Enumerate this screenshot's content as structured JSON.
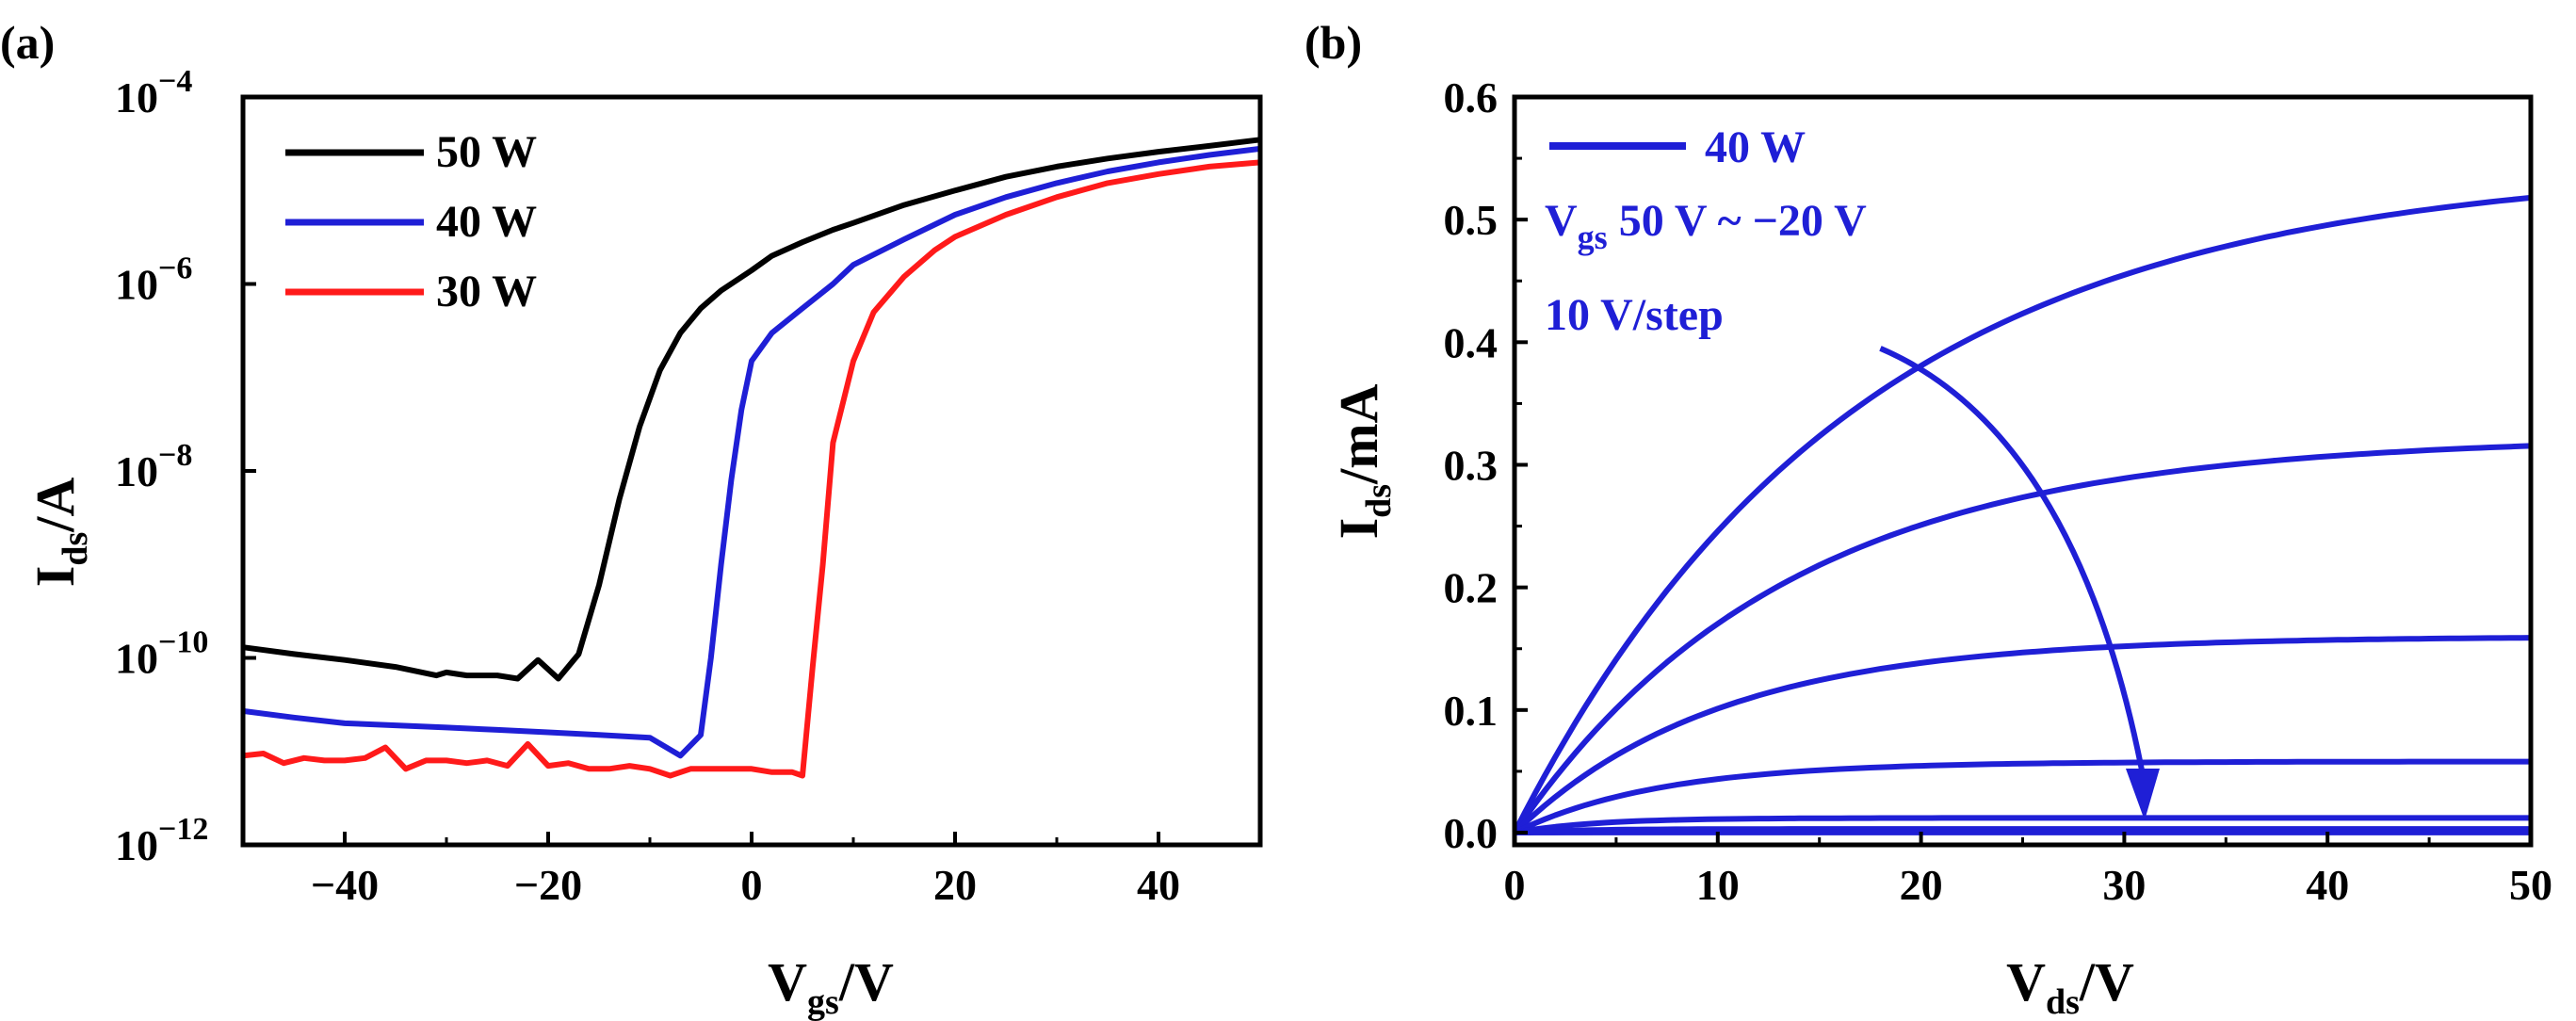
{
  "figure": {
    "label_a": "(a)",
    "label_b": "(b)"
  },
  "chart_data": [
    {
      "type": "line",
      "panel": "(a)",
      "yscale": "log",
      "xlabel": {
        "main": "V",
        "sub": "gs",
        "unit": "/V"
      },
      "ylabel": {
        "main": "I",
        "sub": "ds",
        "unit": "/A"
      },
      "xlim": [
        -50,
        50
      ],
      "ylim": [
        1e-12,
        0.0001
      ],
      "xticks": [
        -40,
        -20,
        0,
        20,
        40
      ],
      "xtick_labels": [
        "−40",
        "−20",
        "0",
        "20",
        "40"
      ],
      "yticks": [
        1e-12,
        1e-10,
        1e-08,
        1e-06,
        0.0001
      ],
      "ytick_labels": [
        {
          "base": "10",
          "exp": "−12"
        },
        {
          "base": "10",
          "exp": "−10"
        },
        {
          "base": "10",
          "exp": "−8"
        },
        {
          "base": "10",
          "exp": "−6"
        },
        {
          "base": "10",
          "exp": "−4"
        }
      ],
      "legend_position": "top-left",
      "series": [
        {
          "name": "50 W",
          "color": "#000000",
          "x": [
            -50,
            -45,
            -40,
            -35,
            -31,
            -30,
            -28,
            -25,
            -23,
            -21,
            -19,
            -17,
            -15,
            -13,
            -11,
            -9,
            -7,
            -5,
            -3,
            0,
            2,
            5,
            8,
            10,
            15,
            20,
            25,
            30,
            35,
            40,
            45,
            50
          ],
          "y": [
            1.3e-10,
            1.1e-10,
            9.5e-11,
            8e-11,
            6.5e-11,
            7e-11,
            6.5e-11,
            6.5e-11,
            6e-11,
            9.5e-11,
            6e-11,
            1.1e-10,
            6e-10,
            5e-09,
            3e-08,
            1.2e-07,
            3e-07,
            5.5e-07,
            8.5e-07,
            1.4e-06,
            2e-06,
            2.8e-06,
            3.8e-06,
            4.5e-06,
            7e-06,
            1e-05,
            1.4e-05,
            1.8e-05,
            2.2e-05,
            2.6e-05,
            3e-05,
            3.5e-05
          ]
        },
        {
          "name": "40 W",
          "color": "#1f1fd6",
          "x": [
            -50,
            -45,
            -40,
            -35,
            -30,
            -25,
            -20,
            -15,
            -10,
            -7,
            -5,
            -4,
            -3,
            -2,
            -1,
            0,
            2,
            5,
            8,
            10,
            15,
            20,
            25,
            30,
            35,
            40,
            45,
            50
          ],
          "y": [
            2.7e-11,
            2.3e-11,
            2e-11,
            1.9e-11,
            1.8e-11,
            1.7e-11,
            1.6e-11,
            1.5e-11,
            1.4e-11,
            9e-12,
            1.5e-11,
            1e-10,
            1e-09,
            8e-09,
            4.5e-08,
            1.5e-07,
            3e-07,
            5.5e-07,
            1e-06,
            1.6e-06,
            3e-06,
            5.5e-06,
            8.5e-06,
            1.2e-05,
            1.6e-05,
            2e-05,
            2.4e-05,
            2.8e-05
          ]
        },
        {
          "name": "30 W",
          "color": "#ff1a1a",
          "x": [
            -50,
            -48,
            -46,
            -44,
            -42,
            -40,
            -38,
            -36,
            -34,
            -32,
            -30,
            -28,
            -26,
            -24,
            -22,
            -20,
            -18,
            -16,
            -14,
            -12,
            -10,
            -8,
            -6,
            -4,
            -2,
            0,
            2,
            4,
            5,
            6,
            7,
            8,
            10,
            12,
            15,
            18,
            20,
            25,
            30,
            35,
            40,
            45,
            50
          ],
          "y": [
            9e-12,
            9.5e-12,
            7.5e-12,
            8.5e-12,
            8e-12,
            8e-12,
            8.5e-12,
            1.1e-11,
            6.5e-12,
            8e-12,
            8e-12,
            7.5e-12,
            8e-12,
            7e-12,
            1.2e-11,
            7e-12,
            7.5e-12,
            6.5e-12,
            6.5e-12,
            7e-12,
            6.5e-12,
            5.5e-12,
            6.5e-12,
            6.5e-12,
            6.5e-12,
            6.5e-12,
            6e-12,
            6e-12,
            5.5e-12,
            8e-11,
            1e-09,
            2e-08,
            1.5e-07,
            5e-07,
            1.2e-06,
            2.3e-06,
            3.2e-06,
            5.5e-06,
            8.5e-06,
            1.2e-05,
            1.5e-05,
            1.8e-05,
            2e-05
          ]
        }
      ]
    },
    {
      "type": "line",
      "panel": "(b)",
      "xlabel": {
        "main": "V",
        "sub": "ds",
        "unit": "/V"
      },
      "ylabel": {
        "main": "I",
        "sub": "ds",
        "unit": "/mA"
      },
      "xlim": [
        0,
        50
      ],
      "ylim": [
        -0.01,
        0.6
      ],
      "xticks": [
        0,
        10,
        20,
        30,
        40,
        50
      ],
      "xtick_labels": [
        "0",
        "10",
        "20",
        "30",
        "40",
        "50"
      ],
      "yticks": [
        0,
        0.1,
        0.2,
        0.3,
        0.4,
        0.5,
        0.6
      ],
      "ytick_labels": [
        "0.0",
        "0.1",
        "0.2",
        "0.3",
        "0.4",
        "0.5",
        "0.6"
      ],
      "legend_position": "top-left",
      "legend": {
        "name": "40 W",
        "color": "#1f1fd6"
      },
      "annotations": {
        "line1": {
          "main": "V",
          "sub": "gs",
          "rest": " 50 V ~ −20 V"
        },
        "line2": "10 V/step"
      },
      "arrow": {
        "direction": "decreasing V_gs",
        "from": [
          18,
          0.395
        ],
        "to": [
          31,
          0.01
        ]
      },
      "series": [
        {
          "name": "Vgs = 50 V",
          "color": "#1f1fd6",
          "saturation": 0.545,
          "k": 0.06
        },
        {
          "name": "Vgs = 40 V",
          "color": "#1f1fd6",
          "saturation": 0.323,
          "k": 0.075
        },
        {
          "name": "Vgs = 30 V",
          "color": "#1f1fd6",
          "saturation": 0.16,
          "k": 0.1
        },
        {
          "name": "Vgs = 20 V",
          "color": "#1f1fd6",
          "saturation": 0.058,
          "k": 0.14
        },
        {
          "name": "Vgs = 10 V",
          "color": "#1f1fd6",
          "saturation": 0.012,
          "k": 0.25
        },
        {
          "name": "Vgs = 0 V",
          "color": "#1f1fd6",
          "saturation": 0.003,
          "k": 0.3
        },
        {
          "name": "Vgs = −10 V",
          "color": "#1f1fd6",
          "saturation": 0.0005,
          "k": 0.3
        },
        {
          "name": "Vgs = −20 V",
          "color": "#1f1fd6",
          "saturation": 0.0001,
          "k": 0.3
        }
      ]
    }
  ]
}
